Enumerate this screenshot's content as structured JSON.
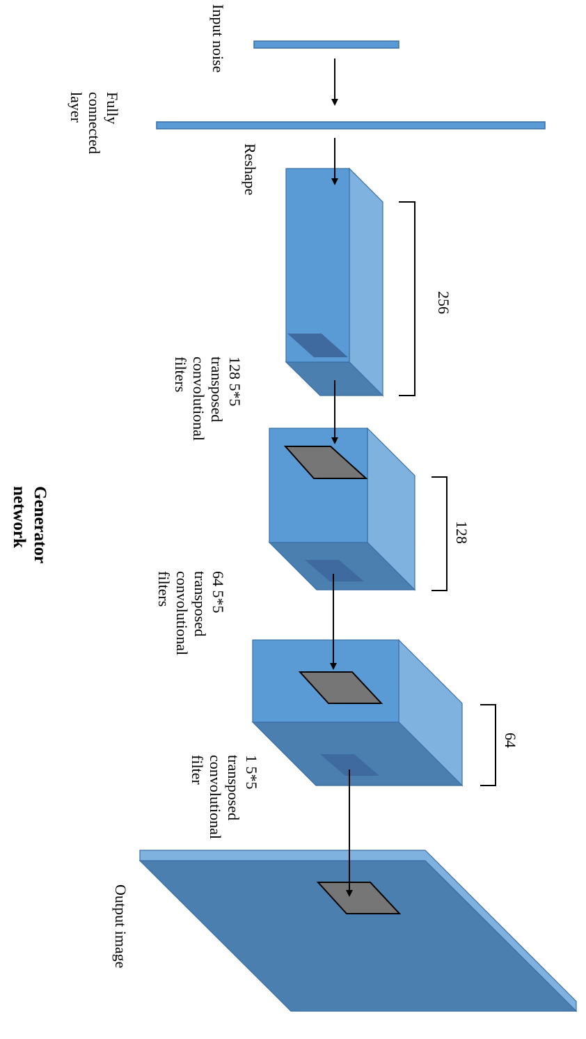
{
  "title": {
    "line1": "Generator",
    "line2": "network"
  },
  "labels": {
    "input_noise": "Input noise",
    "fc": [
      "Fully",
      "connected",
      "layer"
    ],
    "reshape": "Reshape",
    "filters1": [
      "128 5*5",
      "transposed",
      "convolutional",
      "filters"
    ],
    "filters2": [
      "64 5*5",
      "transposed",
      "convolutional",
      "filters"
    ],
    "filters3": [
      "1 5*5",
      "transposed",
      "convolutional",
      "filter"
    ],
    "output": "Output image"
  },
  "depths": {
    "block1": "256",
    "block2": "128",
    "block3": "64"
  },
  "colors": {
    "front": "#5b9bd5",
    "side": "#7fb2df",
    "bottom": "#4a7fb0",
    "filter": "#767676"
  }
}
